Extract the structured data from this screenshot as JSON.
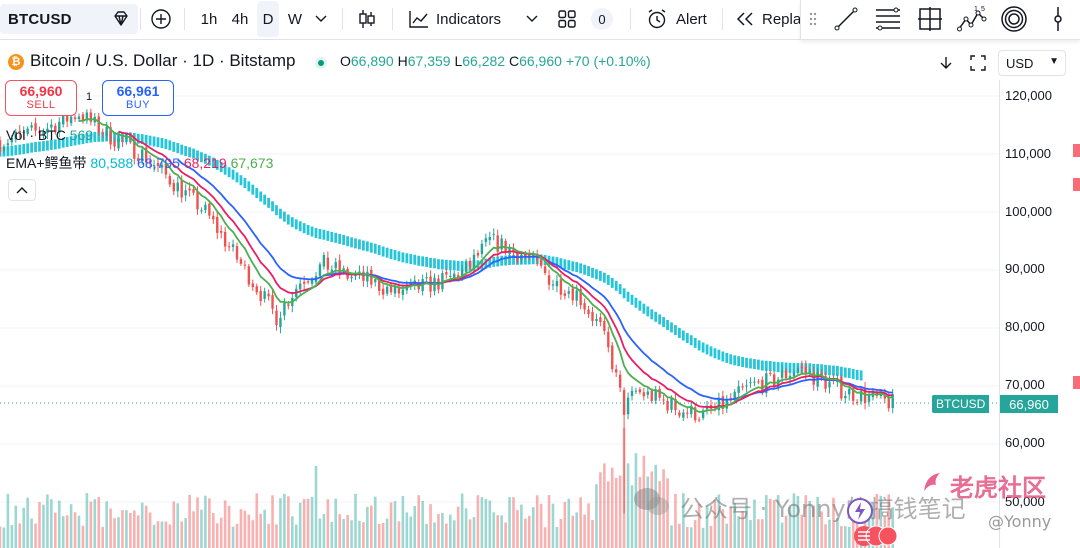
{
  "toolbar": {
    "symbol": "BTCUSD",
    "timeframes": [
      "1h",
      "4h",
      "D",
      "W"
    ],
    "active_timeframe": "D",
    "indicators_label": "Indicators",
    "alert_label": "Alert",
    "replay_label": "Repla",
    "badge_count": "0"
  },
  "legend": {
    "title": "Bitcoin / U.S. Dollar · 1D · Bitstamp",
    "o_label": "O",
    "o_value": "66,890",
    "h_label": "H",
    "h_value": "67,359",
    "l_label": "L",
    "l_value": "66,282",
    "c_label": "C",
    "c_value": "66,960",
    "change": "+70 (+0.10%)"
  },
  "trade": {
    "sell_price": "66,960",
    "sell_label": "SELL",
    "buy_price": "66,961",
    "buy_label": "BUY",
    "quantity": "1"
  },
  "indicators": {
    "volume_label": "Vol · BTC",
    "volume_value": "569",
    "ema_label": "EMA+鳄鱼带",
    "ema_values": [
      "80,588",
      "68,795",
      "68,219",
      "67,673"
    ]
  },
  "price_scale": {
    "currency": "USD",
    "labels": [
      "120,000",
      "110,000",
      "100,000",
      "90,000",
      "80,000",
      "70,000",
      "60,000",
      "50,000"
    ],
    "current_symbol": "BTCUSD",
    "current_price": "66,960"
  },
  "colors": {
    "up": "#26a69a",
    "down": "#ef5350",
    "ema_green": "#4caf50",
    "ema_red": "#e91e63",
    "ema_blue": "#2962ff",
    "ribbon": "#00bcd4"
  },
  "watermark": {
    "wechat": "公众号 · Yonny的搞钱笔记",
    "site": "老虎社区",
    "handle": "@Yonny"
  },
  "chart_data": {
    "type": "candlestick",
    "symbol": "BTCUSD",
    "exchange": "Bitstamp",
    "interval": "1D",
    "ylim": [
      45000,
      128000
    ],
    "close_path": [
      [
        0,
        112000
      ],
      [
        10,
        114000
      ],
      [
        20,
        117000
      ],
      [
        28,
        113000
      ],
      [
        36,
        110000
      ],
      [
        44,
        105000
      ],
      [
        52,
        100000
      ],
      [
        60,
        92000
      ],
      [
        66,
        86000
      ],
      [
        70,
        82000
      ],
      [
        76,
        88000
      ],
      [
        82,
        91000
      ],
      [
        88,
        89000
      ],
      [
        94,
        88000
      ],
      [
        100,
        86000
      ],
      [
        106,
        87000
      ],
      [
        112,
        88000
      ],
      [
        118,
        90000
      ],
      [
        124,
        95000
      ],
      [
        128,
        94000
      ],
      [
        134,
        92000
      ],
      [
        140,
        88000
      ],
      [
        146,
        86000
      ],
      [
        152,
        80000
      ],
      [
        155,
        74000
      ],
      [
        158,
        66000
      ],
      [
        161,
        69000
      ],
      [
        166,
        68000
      ],
      [
        172,
        66000
      ],
      [
        178,
        65000
      ],
      [
        184,
        67000
      ],
      [
        190,
        70000
      ],
      [
        196,
        71000
      ],
      [
        202,
        73000
      ],
      [
        208,
        71000
      ],
      [
        214,
        69000
      ],
      [
        220,
        68000
      ],
      [
        226,
        67000
      ]
    ]
  }
}
